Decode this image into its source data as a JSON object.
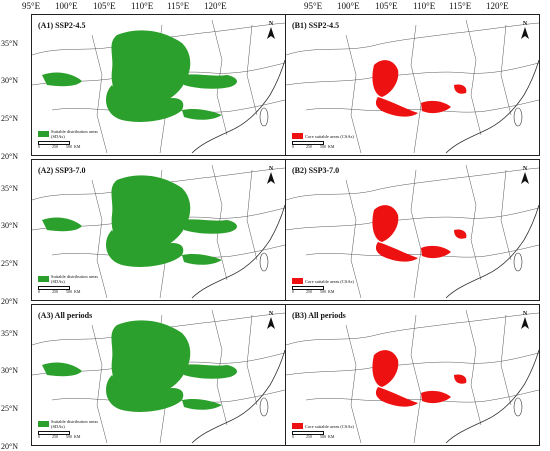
{
  "top_longitudes": [
    "95°E",
    "100°E",
    "105°E",
    "110°E",
    "115°E",
    "120°E"
  ],
  "lat_labels": [
    "35°N",
    "30°N",
    "25°N",
    "20°N"
  ],
  "colors": {
    "suitable": "#2ca02c",
    "core": "#ee1111",
    "border": "#555555"
  },
  "panels": [
    {
      "id": "A1",
      "title": "(A1) SSP2-4.5",
      "legend": "Suitable distribution areas (SDAs)",
      "type": "suitable"
    },
    {
      "id": "B1",
      "title": "(B1) SSP2-4.5",
      "legend": "Core suitable areas (CSAs)",
      "type": "core"
    },
    {
      "id": "A2",
      "title": "(A2) SSP3-7.0",
      "legend": "Suitable distribution areas (SDAs)",
      "type": "suitable"
    },
    {
      "id": "B2",
      "title": "(B2) SSP3-7.0",
      "legend": "Core suitable areas (CSAs)",
      "type": "core"
    },
    {
      "id": "A3",
      "title": "(A3) All periods",
      "legend": "Suitable distribution areas (SDAs)",
      "type": "suitable"
    },
    {
      "id": "B3",
      "title": "(B3) All periods",
      "legend": "Core suitable areas (CSAs)",
      "type": "core"
    }
  ],
  "north_label": "N",
  "scale": {
    "values": [
      "0",
      "250",
      "500"
    ],
    "unit": "KM"
  }
}
